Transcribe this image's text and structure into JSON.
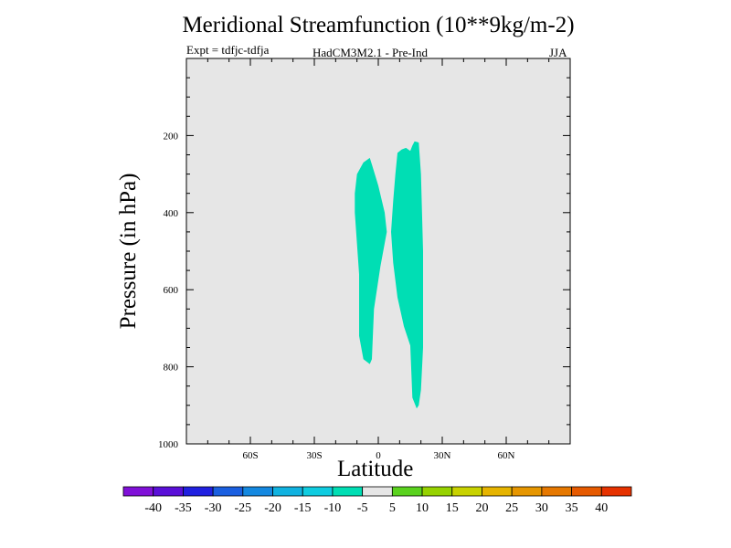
{
  "chart_data": {
    "type": "contour",
    "title": "Meridional Streamfunction (10**9kg/m-2)",
    "subtitle_left": "Expt = tdfjc-tdfja",
    "subtitle_center": "HadCM3M2.1 - Pre-Ind",
    "subtitle_right": "JJA",
    "xlabel": "Latitude",
    "ylabel": "Pressure (in hPa)",
    "xlim": [
      -90,
      90
    ],
    "ylim": [
      1000,
      0
    ],
    "x_ticks": [
      {
        "value": -60,
        "label": "60S"
      },
      {
        "value": -30,
        "label": "30S"
      },
      {
        "value": 0,
        "label": "0"
      },
      {
        "value": 30,
        "label": "30N"
      },
      {
        "value": 60,
        "label": "60N"
      }
    ],
    "y_ticks": [
      {
        "value": 200,
        "label": "200"
      },
      {
        "value": 400,
        "label": "400"
      },
      {
        "value": 600,
        "label": "600"
      },
      {
        "value": 800,
        "label": "800"
      },
      {
        "value": 1000,
        "label": "1000"
      }
    ],
    "background_color": "#e6e6e6",
    "filled_regions": [
      {
        "name": "region-10-to-5-south",
        "level_range": [
          -10,
          -5
        ],
        "color": "#00deb4",
        "points": [
          [
            -11,
            350
          ],
          [
            -10,
            300
          ],
          [
            -7,
            270
          ],
          [
            -4,
            258
          ],
          [
            -3,
            275
          ],
          [
            0,
            330
          ],
          [
            3,
            400
          ],
          [
            4,
            450
          ],
          [
            1,
            540
          ],
          [
            -2,
            650
          ],
          [
            -3,
            780
          ],
          [
            -4,
            793
          ],
          [
            -7,
            780
          ],
          [
            -9,
            720
          ],
          [
            -9,
            560
          ],
          [
            -11,
            400
          ]
        ]
      },
      {
        "name": "region-10-to-5-north",
        "level_range": [
          -10,
          -5
        ],
        "color": "#00deb4",
        "points": [
          [
            8,
            300
          ],
          [
            9,
            245
          ],
          [
            11,
            236
          ],
          [
            13,
            232
          ],
          [
            15,
            240
          ],
          [
            16,
            226
          ],
          [
            17,
            215
          ],
          [
            19,
            218
          ],
          [
            20,
            300
          ],
          [
            21,
            500
          ],
          [
            21,
            750
          ],
          [
            20,
            860
          ],
          [
            19,
            900
          ],
          [
            18,
            908
          ],
          [
            16,
            880
          ],
          [
            15,
            745
          ],
          [
            12,
            695
          ],
          [
            9,
            620
          ],
          [
            7,
            530
          ],
          [
            6,
            450
          ],
          [
            7,
            370
          ]
        ]
      }
    ],
    "colorbar": {
      "labels": [
        "-40",
        "-35",
        "-30",
        "-25",
        "-20",
        "-15",
        "-10",
        "-5",
        "5",
        "10",
        "15",
        "20",
        "25",
        "30",
        "35",
        "40"
      ],
      "colors": [
        "#8010d8",
        "#5a0fd8",
        "#2020e0",
        "#1a5fe0",
        "#1488e0",
        "#10b2e0",
        "#0fcce0",
        "#00deb4",
        "#e6e6e6",
        "#5ad21e",
        "#96d200",
        "#c8d200",
        "#e6b400",
        "#e69600",
        "#e67800",
        "#e65a00",
        "#e63200"
      ]
    }
  }
}
